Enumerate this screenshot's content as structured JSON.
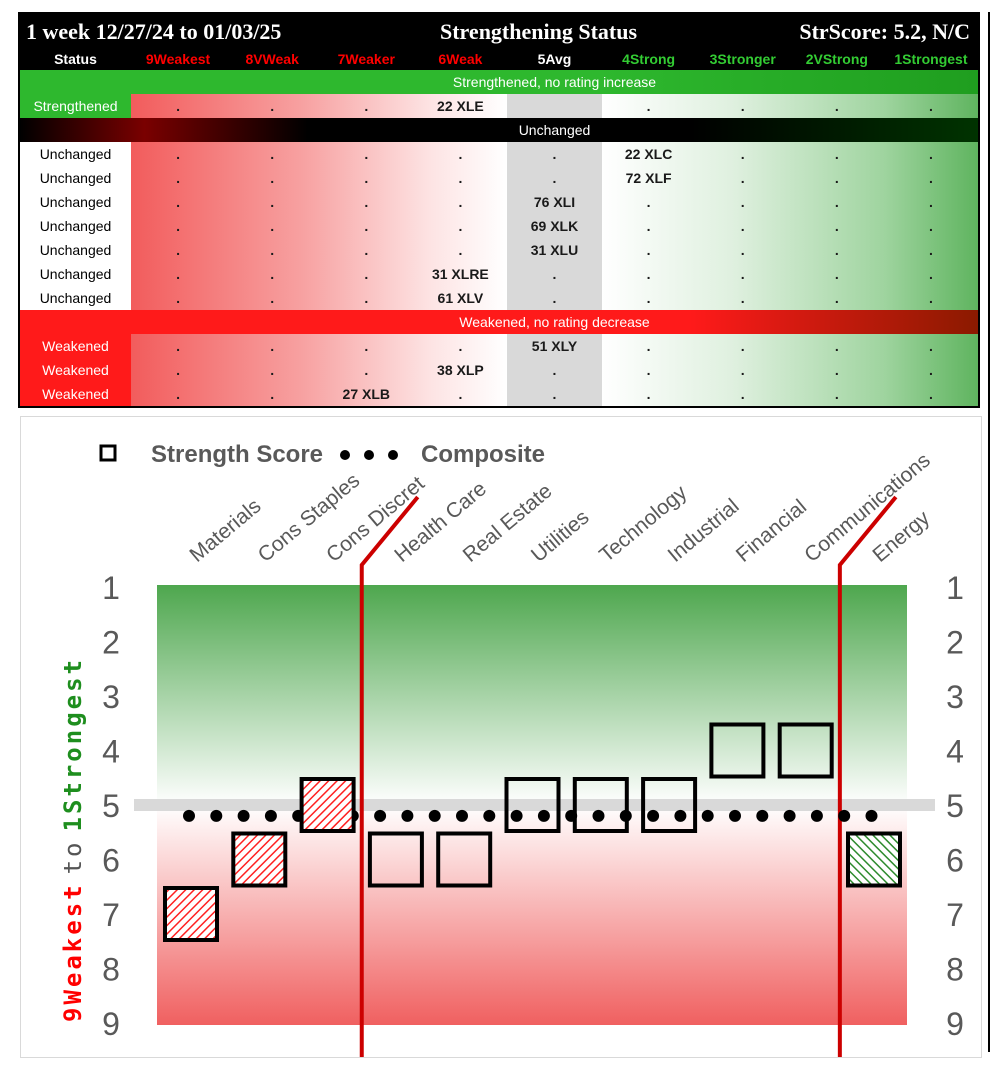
{
  "table": {
    "title_left": "1 week 12/27/24 to 01/03/25",
    "title_center": "Strengthening Status",
    "title_right": "StrScore: 5.2, N/C",
    "status_header": "Status",
    "columns": [
      {
        "label": "9Weakest",
        "color": "#ff0000"
      },
      {
        "label": "8VWeak",
        "color": "#ff0000"
      },
      {
        "label": "7Weaker",
        "color": "#ff0000"
      },
      {
        "label": "6Weak",
        "color": "#ff0000"
      },
      {
        "label": "5Avg",
        "color": "#ffffff"
      },
      {
        "label": "4Strong",
        "color": "#33cc33"
      },
      {
        "label": "3Stronger",
        "color": "#33cc33"
      },
      {
        "label": "2VStrong",
        "color": "#33cc33"
      },
      {
        "label": "1Strongest",
        "color": "#33cc33"
      }
    ],
    "sections": [
      {
        "label": "Strengthened, no rating increase",
        "bar_color": "#2eb82e",
        "rows": [
          {
            "status": "Strengthened",
            "cells": [
              ".",
              ".",
              ".",
              "22 XLE",
              "",
              ".",
              ".",
              ".",
              "."
            ]
          }
        ]
      },
      {
        "label": "Unchanged",
        "bar_color": "#000000",
        "rows": [
          {
            "status": "Unchanged",
            "cells": [
              ".",
              ".",
              ".",
              ".",
              ".",
              "22 XLC",
              ".",
              ".",
              "."
            ]
          },
          {
            "status": "Unchanged",
            "cells": [
              ".",
              ".",
              ".",
              ".",
              ".",
              "72 XLF",
              ".",
              ".",
              "."
            ]
          },
          {
            "status": "Unchanged",
            "cells": [
              ".",
              ".",
              ".",
              ".",
              "76 XLI",
              ".",
              ".",
              ".",
              "."
            ]
          },
          {
            "status": "Unchanged",
            "cells": [
              ".",
              ".",
              ".",
              ".",
              "69 XLK",
              ".",
              ".",
              ".",
              "."
            ]
          },
          {
            "status": "Unchanged",
            "cells": [
              ".",
              ".",
              ".",
              ".",
              "31 XLU",
              ".",
              ".",
              ".",
              "."
            ]
          },
          {
            "status": "Unchanged",
            "cells": [
              ".",
              ".",
              ".",
              "31 XLRE",
              ".",
              ".",
              ".",
              ".",
              "."
            ]
          },
          {
            "status": "Unchanged",
            "cells": [
              ".",
              ".",
              ".",
              "61 XLV",
              ".",
              ".",
              ".",
              ".",
              "."
            ]
          }
        ]
      },
      {
        "label": "Weakened, no rating decrease",
        "bar_color": "#ff1a1a",
        "rows": [
          {
            "status": "Weakened",
            "cells": [
              ".",
              ".",
              ".",
              ".",
              "51 XLY",
              ".",
              ".",
              ".",
              "."
            ]
          },
          {
            "status": "Weakened",
            "cells": [
              ".",
              ".",
              ".",
              "38 XLP",
              ".",
              ".",
              ".",
              ".",
              "."
            ]
          },
          {
            "status": "Weakened",
            "cells": [
              ".",
              ".",
              "27 XLB",
              ".",
              ".",
              ".",
              ".",
              ".",
              "."
            ]
          }
        ]
      }
    ]
  },
  "chart_data": {
    "type": "scatter",
    "legend": {
      "square_label": "Strength Score",
      "dots_label": "Composite",
      "position": "top-left"
    },
    "y_axis_label_weak": "9Weakest",
    "y_axis_label_to": "to",
    "y_axis_label_strong": "1Strongest",
    "ylim": [
      1,
      9
    ],
    "y_ticks": [
      "1",
      "2",
      "3",
      "4",
      "5",
      "6",
      "7",
      "8",
      "9"
    ],
    "y_inverted": true,
    "reference_line": 5,
    "composite_value": 5.2,
    "categories": [
      "Materials",
      "Cons Staples",
      "Cons Discret",
      "Health Care",
      "Real Estate",
      "Utilities",
      "Technology",
      "Industrial",
      "Financial",
      "Communications",
      "Energy"
    ],
    "series": [
      {
        "name": "Strength Score",
        "values": [
          7,
          6,
          5,
          6,
          6,
          5,
          5,
          5,
          4,
          4,
          6
        ],
        "styles": [
          "weakened",
          "weakened",
          "weakened",
          "unchanged",
          "unchanged",
          "unchanged",
          "unchanged",
          "unchanged",
          "unchanged",
          "unchanged",
          "strengthened"
        ]
      }
    ],
    "divider_after_category_index": [
      2,
      9
    ],
    "colors": {
      "strong_green": "#1e8e1e",
      "weak_red": "#ff0000",
      "divider_red": "#cc0000",
      "weakened_hatch": "#ff2020",
      "strengthened_hatch": "#2e8b2e"
    }
  }
}
